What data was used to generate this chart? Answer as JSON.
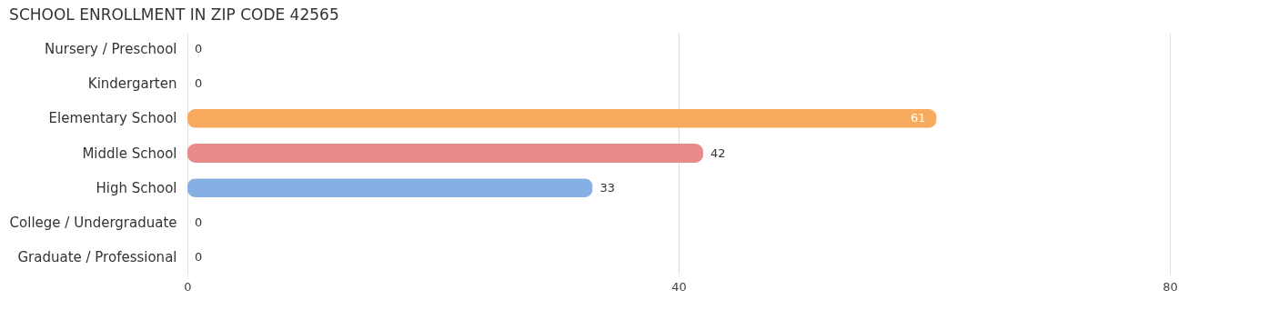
{
  "chart_data": {
    "type": "bar",
    "orientation": "horizontal",
    "title": "SCHOOL ENROLLMENT IN ZIP CODE 42565",
    "categories": [
      "Nursery / Preschool",
      "Kindergarten",
      "Elementary School",
      "Middle School",
      "High School",
      "College / Undergraduate",
      "Graduate / Professional"
    ],
    "values": [
      0,
      0,
      61,
      42,
      33,
      0,
      0
    ],
    "colors": [
      "#b4bde9",
      "#f5a8c6",
      "#f8ab5f",
      "#e88a89",
      "#86b0e3",
      "#c9a9d5",
      "#7ccfd2"
    ],
    "xlim": [
      0,
      80
    ],
    "xticks": [
      0,
      40,
      80
    ],
    "grid": "x",
    "data_labels": true
  }
}
